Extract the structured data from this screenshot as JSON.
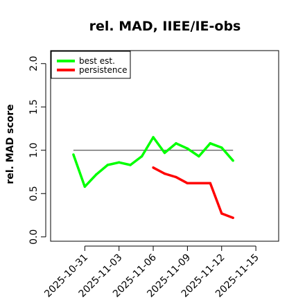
{
  "chart_data": {
    "type": "line",
    "title": "rel. MAD, IIEE/IE-obs",
    "xlabel": "",
    "ylabel": "rel. MAD score",
    "xlim": [
      "2025-10-28",
      "2025-11-17"
    ],
    "ylim": [
      0.0,
      2.0
    ],
    "grid": false,
    "legend_position": "top-left",
    "x_ticks": [
      "2025-10-31",
      "2025-11-03",
      "2025-11-06",
      "2025-11-09",
      "2025-11-12",
      "2025-11-15"
    ],
    "y_ticks": [
      "0.0",
      "0.5",
      "1.0",
      "1.5",
      "2.0"
    ],
    "reference_line": {
      "y": 1.0,
      "x_start": "2025-10-30",
      "x_end": "2025-11-13",
      "color": "#555555"
    },
    "series": [
      {
        "name": "best est.",
        "color": "#00ff00",
        "x": [
          "2025-10-30",
          "2025-10-31",
          "2025-11-01",
          "2025-11-02",
          "2025-11-03",
          "2025-11-04",
          "2025-11-05",
          "2025-11-06",
          "2025-11-07",
          "2025-11-08",
          "2025-11-09",
          "2025-11-10",
          "2025-11-11",
          "2025-11-12",
          "2025-11-13"
        ],
        "y": [
          0.95,
          0.58,
          0.72,
          0.83,
          0.86,
          0.83,
          0.93,
          1.15,
          0.97,
          1.08,
          1.02,
          0.93,
          1.08,
          1.03,
          0.88
        ]
      },
      {
        "name": "persistence",
        "color": "#ff0000",
        "x": [
          "2025-11-06",
          "2025-11-07",
          "2025-11-08",
          "2025-11-09",
          "2025-11-10",
          "2025-11-11",
          "2025-11-12",
          "2025-11-13"
        ],
        "y": [
          0.8,
          0.73,
          0.69,
          0.62,
          0.62,
          0.62,
          0.27,
          0.22
        ]
      }
    ]
  }
}
